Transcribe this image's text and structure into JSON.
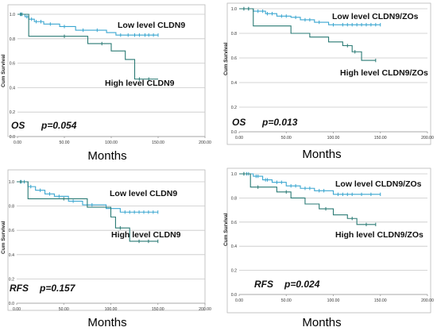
{
  "chart_data": [
    {
      "type": "line",
      "title": "",
      "xlabel": "Months",
      "ylabel": "Cum Survival",
      "xlim": [
        0,
        200
      ],
      "ylim": [
        0,
        1.0
      ],
      "xticks": [
        "0.00",
        "50.00",
        "100.00",
        "150.00",
        "200.00"
      ],
      "yticks": [
        "0.0",
        "0.2",
        "0.4",
        "0.6",
        "0.8",
        "1.0"
      ],
      "grid": true,
      "statistic": {
        "name": "OS",
        "p_value": "p=0.054"
      },
      "series": [
        {
          "name": "Low level CLDN9",
          "color": "#3aa6d0",
          "x": [
            0,
            8,
            12,
            18,
            28,
            45,
            62,
            95,
            105,
            150
          ],
          "y": [
            1.0,
            0.98,
            0.96,
            0.94,
            0.92,
            0.9,
            0.87,
            0.85,
            0.83,
            0.83
          ],
          "censor_x": [
            3,
            5,
            10,
            15,
            20,
            25,
            35,
            50,
            70,
            85,
            110,
            118,
            125,
            130,
            136,
            140,
            145,
            150
          ]
        },
        {
          "name": "High level CLDN9",
          "color": "#2a7a74",
          "x": [
            0,
            12,
            75,
            100,
            115,
            125,
            150
          ],
          "y": [
            1.0,
            0.82,
            0.76,
            0.7,
            0.63,
            0.47,
            0.47
          ],
          "censor_x": [
            4,
            50,
            90,
            130,
            140
          ]
        }
      ]
    },
    {
      "type": "line",
      "title": "",
      "xlabel": "Months",
      "ylabel": "Cum Survival",
      "xlim": [
        0,
        200
      ],
      "ylim": [
        0,
        1.0
      ],
      "xticks": [
        "0.00",
        "50.00",
        "100.00",
        "150.00",
        "200.00"
      ],
      "yticks": [
        "0.0",
        "0.2",
        "0.4",
        "0.6",
        "0.8",
        "1.0"
      ],
      "grid": true,
      "statistic": {
        "name": "OS",
        "p_value": "p=0.013"
      },
      "series": [
        {
          "name": "Low level CLDN9/ZOs",
          "color": "#3aa6d0",
          "x": [
            0,
            15,
            28,
            40,
            55,
            65,
            80,
            95,
            150
          ],
          "y": [
            1.0,
            0.98,
            0.96,
            0.94,
            0.93,
            0.91,
            0.89,
            0.87,
            0.87
          ],
          "censor_x": [
            5,
            10,
            20,
            25,
            30,
            35,
            45,
            50,
            60,
            70,
            75,
            85,
            100,
            110,
            115,
            120,
            125,
            130,
            135,
            140,
            145,
            150
          ]
        },
        {
          "name": "High level CLDN9/ZOs",
          "color": "#2a7a74",
          "x": [
            0,
            15,
            55,
            75,
            95,
            110,
            120,
            130,
            145
          ],
          "y": [
            1.0,
            0.86,
            0.8,
            0.77,
            0.73,
            0.7,
            0.65,
            0.58,
            0.58
          ],
          "censor_x": [
            5,
            10,
            115,
            123,
            145
          ]
        }
      ]
    },
    {
      "type": "line",
      "title": "",
      "xlabel": "Months",
      "ylabel": "Cum Survival",
      "xlim": [
        0,
        200
      ],
      "ylim": [
        0,
        1.0
      ],
      "xticks": [
        "0.00",
        "50.00",
        "100.00",
        "150.00",
        "200.00"
      ],
      "yticks": [
        "0.0",
        "0.2",
        "0.4",
        "0.6",
        "0.8",
        "1.0"
      ],
      "grid": true,
      "statistic": {
        "name": "RFS",
        "p_value": "p=0.157"
      },
      "series": [
        {
          "name": "Low level CLDN9",
          "color": "#3aa6d0",
          "x": [
            0,
            12,
            20,
            30,
            40,
            55,
            70,
            95,
            110,
            150
          ],
          "y": [
            1.0,
            0.96,
            0.93,
            0.9,
            0.88,
            0.84,
            0.81,
            0.78,
            0.75,
            0.75
          ],
          "censor_x": [
            5,
            8,
            15,
            25,
            35,
            45,
            60,
            80,
            100,
            115,
            120,
            125,
            130,
            135,
            140,
            145,
            150
          ]
        },
        {
          "name": "High level CLDN9",
          "color": "#2a7a74",
          "x": [
            0,
            12,
            75,
            100,
            105,
            120,
            150
          ],
          "y": [
            1.0,
            0.86,
            0.79,
            0.71,
            0.62,
            0.51,
            0.51
          ],
          "censor_x": [
            4,
            50,
            110,
            130,
            140,
            150
          ]
        }
      ]
    },
    {
      "type": "line",
      "title": "",
      "xlabel": "Months",
      "ylabel": "Cum Survival",
      "xlim": [
        0,
        200
      ],
      "ylim": [
        0,
        1.0
      ],
      "xticks": [
        "0.00",
        "50.00",
        "100.00",
        "150.00",
        "200.00"
      ],
      "yticks": [
        "0.0",
        "0.2",
        "0.4",
        "0.6",
        "0.8",
        "1.0"
      ],
      "grid": true,
      "statistic": {
        "name": "RFS",
        "p_value": "p=0.024"
      },
      "series": [
        {
          "name": "Low level CLDN9/ZOs",
          "color": "#3aa6d0",
          "x": [
            0,
            15,
            25,
            35,
            50,
            65,
            80,
            100,
            150
          ],
          "y": [
            1.0,
            0.98,
            0.95,
            0.93,
            0.9,
            0.88,
            0.86,
            0.83,
            0.83
          ],
          "censor_x": [
            5,
            8,
            10,
            18,
            20,
            28,
            30,
            40,
            45,
            55,
            60,
            70,
            75,
            85,
            90,
            105,
            110,
            115,
            120,
            130,
            140,
            150
          ]
        },
        {
          "name": "High level CLDN9/ZOs",
          "color": "#2a7a74",
          "x": [
            0,
            12,
            40,
            55,
            70,
            85,
            100,
            115,
            125,
            145
          ],
          "y": [
            1.0,
            0.89,
            0.85,
            0.8,
            0.75,
            0.71,
            0.66,
            0.63,
            0.58,
            0.58
          ],
          "censor_x": [
            5,
            20,
            50,
            92,
            120,
            135,
            145
          ]
        }
      ]
    }
  ]
}
